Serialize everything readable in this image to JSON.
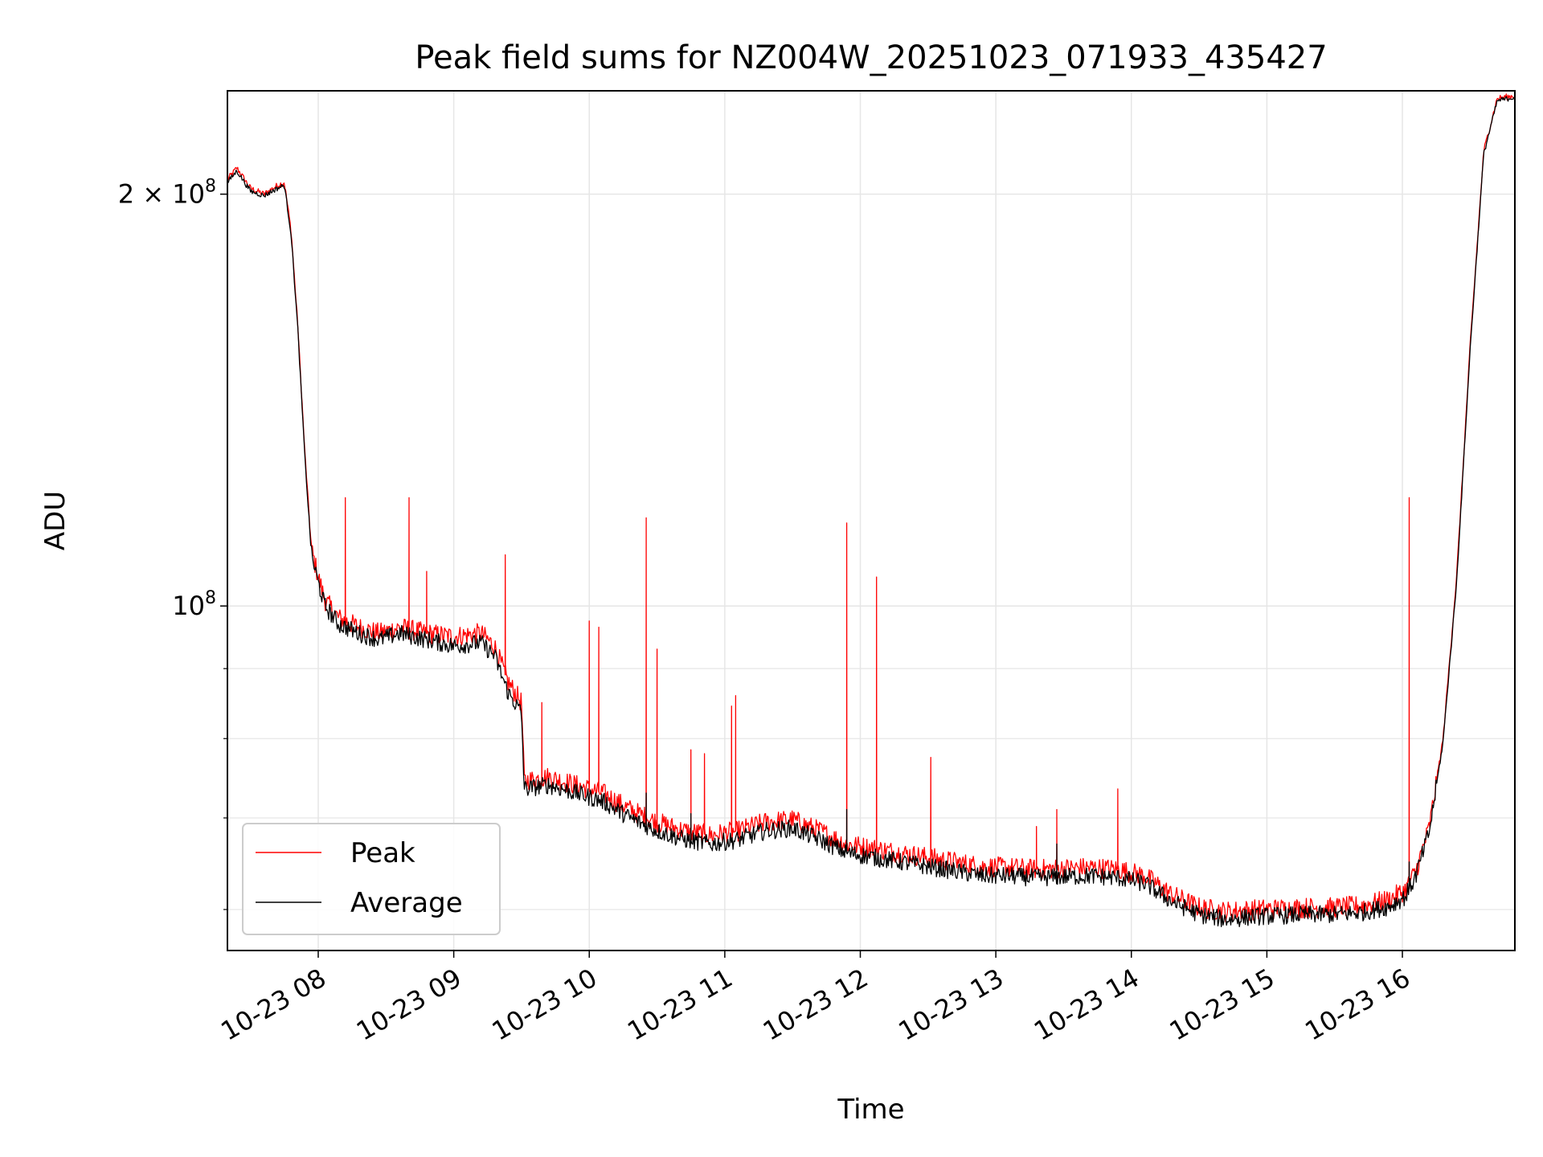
{
  "chart_data": {
    "type": "line",
    "title": "Peak field sums for NZ004W_20251023_071933_435427",
    "xlabel": "Time",
    "ylabel": "ADU",
    "yscale": "log",
    "grid": true,
    "legend_position": "lower-left",
    "x_units": "hours since 2025-10-23 00:00",
    "xlim": [
      7.33,
      16.83
    ],
    "ylim": [
      56000000,
      238000000
    ],
    "x_ticks": [
      {
        "value": 8,
        "label": "10-23 08"
      },
      {
        "value": 9,
        "label": "10-23 09"
      },
      {
        "value": 10,
        "label": "10-23 10"
      },
      {
        "value": 11,
        "label": "10-23 11"
      },
      {
        "value": 12,
        "label": "10-23 12"
      },
      {
        "value": 13,
        "label": "10-23 13"
      },
      {
        "value": 14,
        "label": "10-23 14"
      },
      {
        "value": 15,
        "label": "10-23 15"
      },
      {
        "value": 16,
        "label": "10-23 16"
      }
    ],
    "y_major_ticks": [
      {
        "value": 100000000,
        "base": "10",
        "exp": "8"
      },
      {
        "value": 200000000,
        "base": "2 × 10",
        "exp": "8"
      }
    ],
    "y_minor_ticks": [
      60000000,
      70000000,
      80000000,
      90000000
    ],
    "series": [
      {
        "name": "Peak",
        "color": "#ff0000",
        "baseline": [
          [
            7.33,
            205000000
          ],
          [
            7.4,
            209000000
          ],
          [
            7.5,
            202000000
          ],
          [
            7.6,
            200000000
          ],
          [
            7.7,
            203000000
          ],
          [
            7.75,
            204000000
          ],
          [
            7.8,
            188000000
          ],
          [
            7.85,
            160000000
          ],
          [
            7.9,
            130000000
          ],
          [
            7.95,
            110000000
          ],
          [
            8.0,
            105000000
          ],
          [
            8.05,
            101000000
          ],
          [
            8.15,
            98000000
          ],
          [
            8.3,
            96500000
          ],
          [
            8.45,
            95500000
          ],
          [
            8.6,
            96500000
          ],
          [
            8.8,
            95500000
          ],
          [
            9.0,
            95000000
          ],
          [
            9.2,
            95500000
          ],
          [
            9.3,
            93500000
          ],
          [
            9.4,
            88000000
          ],
          [
            9.5,
            85000000
          ],
          [
            9.52,
            74500000
          ],
          [
            9.7,
            75000000
          ],
          [
            9.9,
            74000000
          ],
          [
            10.1,
            73000000
          ],
          [
            10.3,
            71000000
          ],
          [
            10.5,
            69500000
          ],
          [
            10.7,
            68500000
          ],
          [
            10.9,
            68000000
          ],
          [
            11.1,
            68500000
          ],
          [
            11.3,
            69500000
          ],
          [
            11.5,
            69800000
          ],
          [
            11.7,
            68500000
          ],
          [
            11.9,
            67000000
          ],
          [
            12.1,
            66500000
          ],
          [
            12.3,
            66000000
          ],
          [
            12.5,
            65500000
          ],
          [
            12.7,
            65000000
          ],
          [
            12.9,
            64500000
          ],
          [
            13.1,
            64400000
          ],
          [
            13.3,
            64200000
          ],
          [
            13.5,
            64300000
          ],
          [
            13.7,
            64400000
          ],
          [
            13.9,
            64200000
          ],
          [
            14.1,
            63500000
          ],
          [
            14.3,
            61500000
          ],
          [
            14.5,
            60200000
          ],
          [
            14.7,
            59800000
          ],
          [
            14.9,
            60000000
          ],
          [
            15.1,
            60100000
          ],
          [
            15.3,
            60200000
          ],
          [
            15.5,
            60200000
          ],
          [
            15.7,
            60400000
          ],
          [
            15.9,
            61000000
          ],
          [
            16.02,
            62000000
          ],
          [
            16.1,
            64000000
          ],
          [
            16.2,
            69000000
          ],
          [
            16.3,
            80000000
          ],
          [
            16.4,
            105000000
          ],
          [
            16.5,
            155000000
          ],
          [
            16.6,
            215000000
          ],
          [
            16.7,
            235000000
          ],
          [
            16.83,
            236000000
          ]
        ],
        "spikes": [
          [
            8.2,
            120000000
          ],
          [
            8.67,
            120000000
          ],
          [
            8.8,
            106000000
          ],
          [
            9.38,
            109000000
          ],
          [
            9.65,
            85000000
          ],
          [
            10.0,
            97500000
          ],
          [
            10.07,
            96500000
          ],
          [
            10.42,
            116000000
          ],
          [
            10.5,
            93000000
          ],
          [
            10.75,
            78500000
          ],
          [
            10.85,
            78000000
          ],
          [
            11.05,
            84500000
          ],
          [
            11.08,
            86000000
          ],
          [
            11.9,
            115000000
          ],
          [
            12.12,
            105000000
          ],
          [
            12.52,
            77500000
          ],
          [
            13.3,
            69000000
          ],
          [
            13.45,
            71000000
          ],
          [
            13.9,
            73500000
          ],
          [
            16.05,
            120000000
          ]
        ]
      },
      {
        "name": "Average",
        "color": "#000000",
        "baseline": [
          [
            7.33,
            204000000
          ],
          [
            7.4,
            208000000
          ],
          [
            7.5,
            201000000
          ],
          [
            7.6,
            199500000
          ],
          [
            7.7,
            202000000
          ],
          [
            7.75,
            203000000
          ],
          [
            7.8,
            187000000
          ],
          [
            7.85,
            159000000
          ],
          [
            7.9,
            129000000
          ],
          [
            7.95,
            109000000
          ],
          [
            8.0,
            104000000
          ],
          [
            8.05,
            100000000
          ],
          [
            8.15,
            97000000
          ],
          [
            8.3,
            95500000
          ],
          [
            8.45,
            94500000
          ],
          [
            8.6,
            95500000
          ],
          [
            8.8,
            94500000
          ],
          [
            9.0,
            93500000
          ],
          [
            9.2,
            94000000
          ],
          [
            9.3,
            92000000
          ],
          [
            9.4,
            86500000
          ],
          [
            9.5,
            83500000
          ],
          [
            9.52,
            73500000
          ],
          [
            9.7,
            74000000
          ],
          [
            9.9,
            73000000
          ],
          [
            10.1,
            72000000
          ],
          [
            10.3,
            70000000
          ],
          [
            10.5,
            68500000
          ],
          [
            10.7,
            67500000
          ],
          [
            10.9,
            67000000
          ],
          [
            11.1,
            67500000
          ],
          [
            11.3,
            68500000
          ],
          [
            11.5,
            68800000
          ],
          [
            11.7,
            67500000
          ],
          [
            11.9,
            66000000
          ],
          [
            12.1,
            65500000
          ],
          [
            12.3,
            65000000
          ],
          [
            12.5,
            64500000
          ],
          [
            12.7,
            64000000
          ],
          [
            12.9,
            63500000
          ],
          [
            13.1,
            63500000
          ],
          [
            13.3,
            63300000
          ],
          [
            13.5,
            63400000
          ],
          [
            13.7,
            63500000
          ],
          [
            13.9,
            63300000
          ],
          [
            14.1,
            62700000
          ],
          [
            14.3,
            60800000
          ],
          [
            14.5,
            59500000
          ],
          [
            14.7,
            59000000
          ],
          [
            14.9,
            59300000
          ],
          [
            15.1,
            59400000
          ],
          [
            15.3,
            59500000
          ],
          [
            15.5,
            59500000
          ],
          [
            15.7,
            59700000
          ],
          [
            15.9,
            60300000
          ],
          [
            16.02,
            61300000
          ],
          [
            16.1,
            63500000
          ],
          [
            16.2,
            68500000
          ],
          [
            16.3,
            79500000
          ],
          [
            16.4,
            104000000
          ],
          [
            16.5,
            154000000
          ],
          [
            16.6,
            214000000
          ],
          [
            16.7,
            234000000
          ],
          [
            16.83,
            235500000
          ]
        ],
        "spikes": [
          [
            10.42,
            73000000
          ],
          [
            10.75,
            70500000
          ],
          [
            11.9,
            71000000
          ],
          [
            13.45,
            67000000
          ],
          [
            16.05,
            65000000
          ]
        ]
      }
    ]
  }
}
